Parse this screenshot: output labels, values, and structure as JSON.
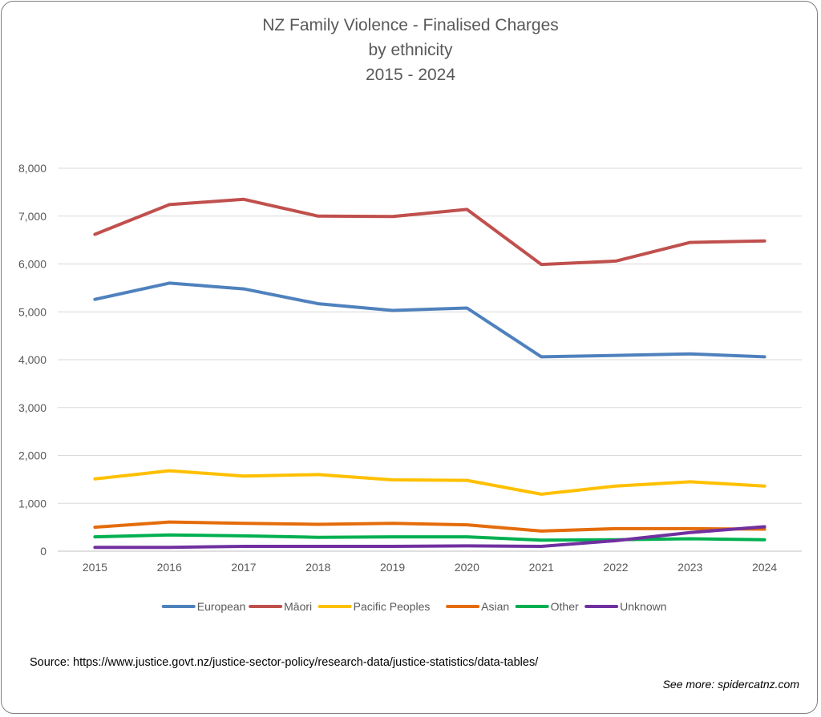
{
  "chart_data": {
    "type": "line",
    "title_lines": [
      "NZ Family Violence - Finalised Charges",
      "by ethnicity",
      "2015 - 2024"
    ],
    "categories": [
      "2015",
      "2016",
      "2017",
      "2018",
      "2019",
      "2020",
      "2021",
      "2022",
      "2023",
      "2024"
    ],
    "y_ticks": [
      "0",
      "1,000",
      "2,000",
      "3,000",
      "4,000",
      "5,000",
      "6,000",
      "7,000",
      "8,000"
    ],
    "ylim": [
      0,
      8000
    ],
    "grid": true,
    "legend_position": "bottom",
    "series": [
      {
        "name": "European",
        "color": "#4f81bd",
        "values": [
          5260,
          5600,
          5480,
          5170,
          5030,
          5080,
          4060,
          4090,
          4120,
          4060
        ]
      },
      {
        "name": "Māori",
        "color": "#c0504d",
        "values": [
          6620,
          7240,
          7350,
          7000,
          6990,
          7140,
          5990,
          6060,
          6450,
          6480
        ]
      },
      {
        "name": "Pacific Peoples",
        "color": "#ffc000",
        "values": [
          1510,
          1680,
          1570,
          1600,
          1490,
          1480,
          1190,
          1360,
          1450,
          1360
        ]
      },
      {
        "name": "Asian",
        "color": "#e46c0a",
        "values": [
          500,
          610,
          580,
          560,
          580,
          550,
          420,
          470,
          470,
          460
        ]
      },
      {
        "name": "Other",
        "color": "#00b050",
        "values": [
          300,
          340,
          320,
          290,
          300,
          300,
          230,
          240,
          260,
          240
        ]
      },
      {
        "name": "Unknown",
        "color": "#7030a0",
        "values": [
          80,
          80,
          100,
          100,
          100,
          110,
          100,
          220,
          390,
          510
        ]
      }
    ]
  },
  "footer": {
    "source": "Source: https://www.justice.govt.nz/justice-sector-policy/research-data/justice-statistics/data-tables/",
    "credit": "See more: spidercatnz.com"
  }
}
